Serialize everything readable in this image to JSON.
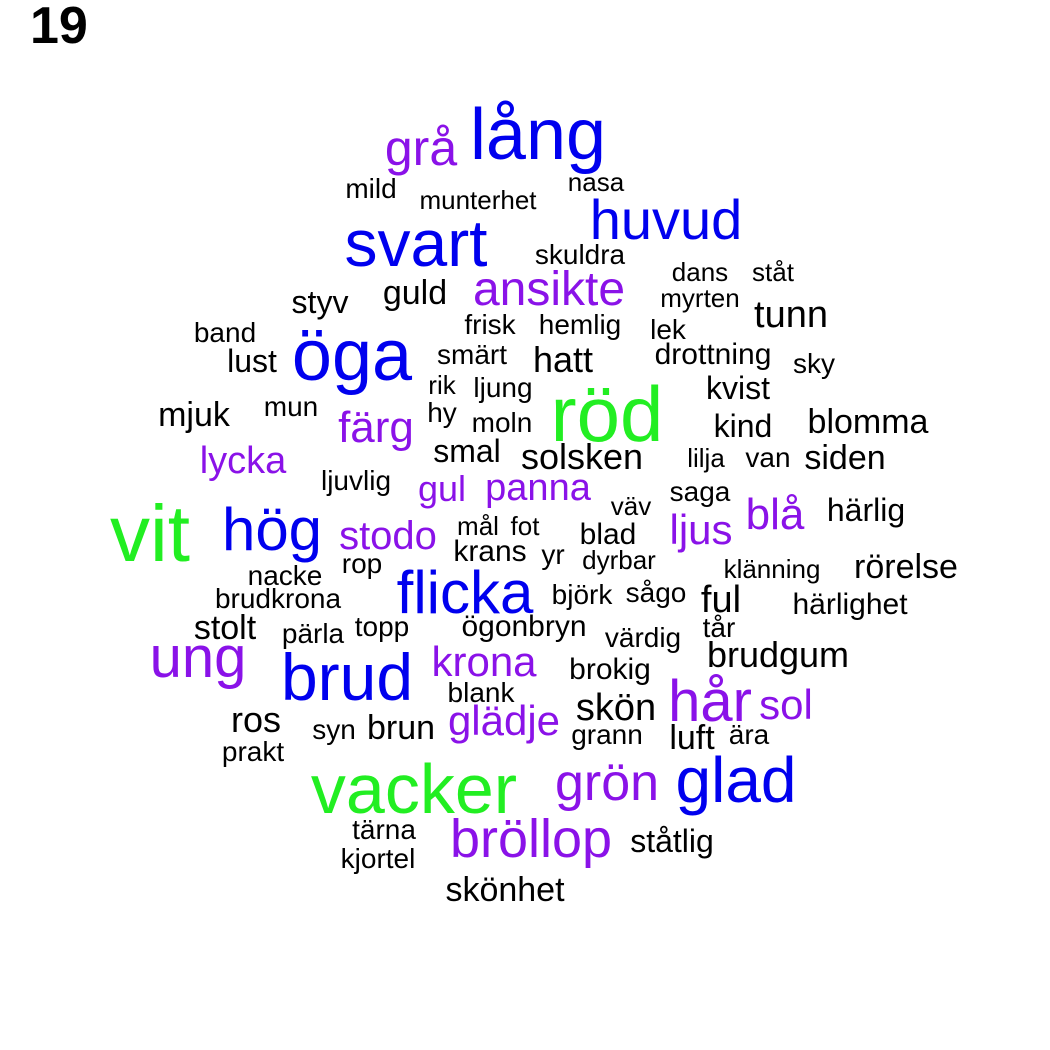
{
  "page_number": "19",
  "colors": {
    "black": "#000000",
    "purple": "#8a12e8",
    "blue": "#0000ee",
    "green": "#22ee22"
  },
  "words": [
    {
      "text": "grå",
      "color": "purple"
    },
    {
      "text": "lång",
      "color": "blue"
    },
    {
      "text": "mild",
      "color": "black"
    },
    {
      "text": "munterhet",
      "color": "black"
    },
    {
      "text": "nasa",
      "color": "black"
    },
    {
      "text": "svart",
      "color": "blue"
    },
    {
      "text": "huvud",
      "color": "blue"
    },
    {
      "text": "skuldra",
      "color": "black"
    },
    {
      "text": "dans",
      "color": "black"
    },
    {
      "text": "ståt",
      "color": "black"
    },
    {
      "text": "styv",
      "color": "black"
    },
    {
      "text": "guld",
      "color": "black"
    },
    {
      "text": "ansikte",
      "color": "purple"
    },
    {
      "text": "myrten",
      "color": "black"
    },
    {
      "text": "tunn",
      "color": "black"
    },
    {
      "text": "band",
      "color": "black"
    },
    {
      "text": "frisk",
      "color": "black"
    },
    {
      "text": "hemlig",
      "color": "black"
    },
    {
      "text": "lek",
      "color": "black"
    },
    {
      "text": "öga",
      "color": "blue"
    },
    {
      "text": "lust",
      "color": "black"
    },
    {
      "text": "smärt",
      "color": "black"
    },
    {
      "text": "hatt",
      "color": "black"
    },
    {
      "text": "drottning",
      "color": "black"
    },
    {
      "text": "sky",
      "color": "black"
    },
    {
      "text": "rik",
      "color": "black"
    },
    {
      "text": "ljung",
      "color": "black"
    },
    {
      "text": "röd",
      "color": "green"
    },
    {
      "text": "kvist",
      "color": "black"
    },
    {
      "text": "mjuk",
      "color": "black"
    },
    {
      "text": "mun",
      "color": "black"
    },
    {
      "text": "färg",
      "color": "purple"
    },
    {
      "text": "hy",
      "color": "black"
    },
    {
      "text": "moln",
      "color": "black"
    },
    {
      "text": "kind",
      "color": "black"
    },
    {
      "text": "blomma",
      "color": "black"
    },
    {
      "text": "lycka",
      "color": "purple"
    },
    {
      "text": "smal",
      "color": "black"
    },
    {
      "text": "solsken",
      "color": "black"
    },
    {
      "text": "lilja",
      "color": "black"
    },
    {
      "text": "van",
      "color": "black"
    },
    {
      "text": "siden",
      "color": "black"
    },
    {
      "text": "ljuvlig",
      "color": "black"
    },
    {
      "text": "gul",
      "color": "purple"
    },
    {
      "text": "panna",
      "color": "purple"
    },
    {
      "text": "väv",
      "color": "black"
    },
    {
      "text": "saga",
      "color": "black"
    },
    {
      "text": "vit",
      "color": "green"
    },
    {
      "text": "hög",
      "color": "blue"
    },
    {
      "text": "stodo",
      "color": "purple"
    },
    {
      "text": "mål",
      "color": "black"
    },
    {
      "text": "fot",
      "color": "black"
    },
    {
      "text": "blad",
      "color": "black"
    },
    {
      "text": "ljus",
      "color": "purple"
    },
    {
      "text": "blå",
      "color": "purple"
    },
    {
      "text": "härlig",
      "color": "black"
    },
    {
      "text": "krans",
      "color": "black"
    },
    {
      "text": "yr",
      "color": "black"
    },
    {
      "text": "dyrbar",
      "color": "black"
    },
    {
      "text": "rop",
      "color": "black"
    },
    {
      "text": "nacke",
      "color": "black"
    },
    {
      "text": "flicka",
      "color": "blue"
    },
    {
      "text": "klänning",
      "color": "black"
    },
    {
      "text": "rörelse",
      "color": "black"
    },
    {
      "text": "brudkrona",
      "color": "black"
    },
    {
      "text": "björk",
      "color": "black"
    },
    {
      "text": "sågo",
      "color": "black"
    },
    {
      "text": "ful",
      "color": "black"
    },
    {
      "text": "härlighet",
      "color": "black"
    },
    {
      "text": "stolt",
      "color": "black"
    },
    {
      "text": "pärla",
      "color": "black"
    },
    {
      "text": "topp",
      "color": "black"
    },
    {
      "text": "ögonbryn",
      "color": "black"
    },
    {
      "text": "tår",
      "color": "black"
    },
    {
      "text": "värdig",
      "color": "black"
    },
    {
      "text": "ung",
      "color": "purple"
    },
    {
      "text": "brud",
      "color": "blue"
    },
    {
      "text": "krona",
      "color": "purple"
    },
    {
      "text": "brudgum",
      "color": "black"
    },
    {
      "text": "brokig",
      "color": "black"
    },
    {
      "text": "blank",
      "color": "black"
    },
    {
      "text": "hår",
      "color": "purple"
    },
    {
      "text": "sol",
      "color": "purple"
    },
    {
      "text": "ros",
      "color": "black"
    },
    {
      "text": "skön",
      "color": "black"
    },
    {
      "text": "syn",
      "color": "black"
    },
    {
      "text": "brun",
      "color": "black"
    },
    {
      "text": "glädje",
      "color": "purple"
    },
    {
      "text": "grann",
      "color": "black"
    },
    {
      "text": "luft",
      "color": "black"
    },
    {
      "text": "ära",
      "color": "black"
    },
    {
      "text": "prakt",
      "color": "black"
    },
    {
      "text": "vacker",
      "color": "green"
    },
    {
      "text": "grön",
      "color": "purple"
    },
    {
      "text": "glad",
      "color": "blue"
    },
    {
      "text": "tärna",
      "color": "black"
    },
    {
      "text": "bröllop",
      "color": "purple"
    },
    {
      "text": "ståtlig",
      "color": "black"
    },
    {
      "text": "kjortel",
      "color": "black"
    },
    {
      "text": "skönhet",
      "color": "black"
    }
  ]
}
